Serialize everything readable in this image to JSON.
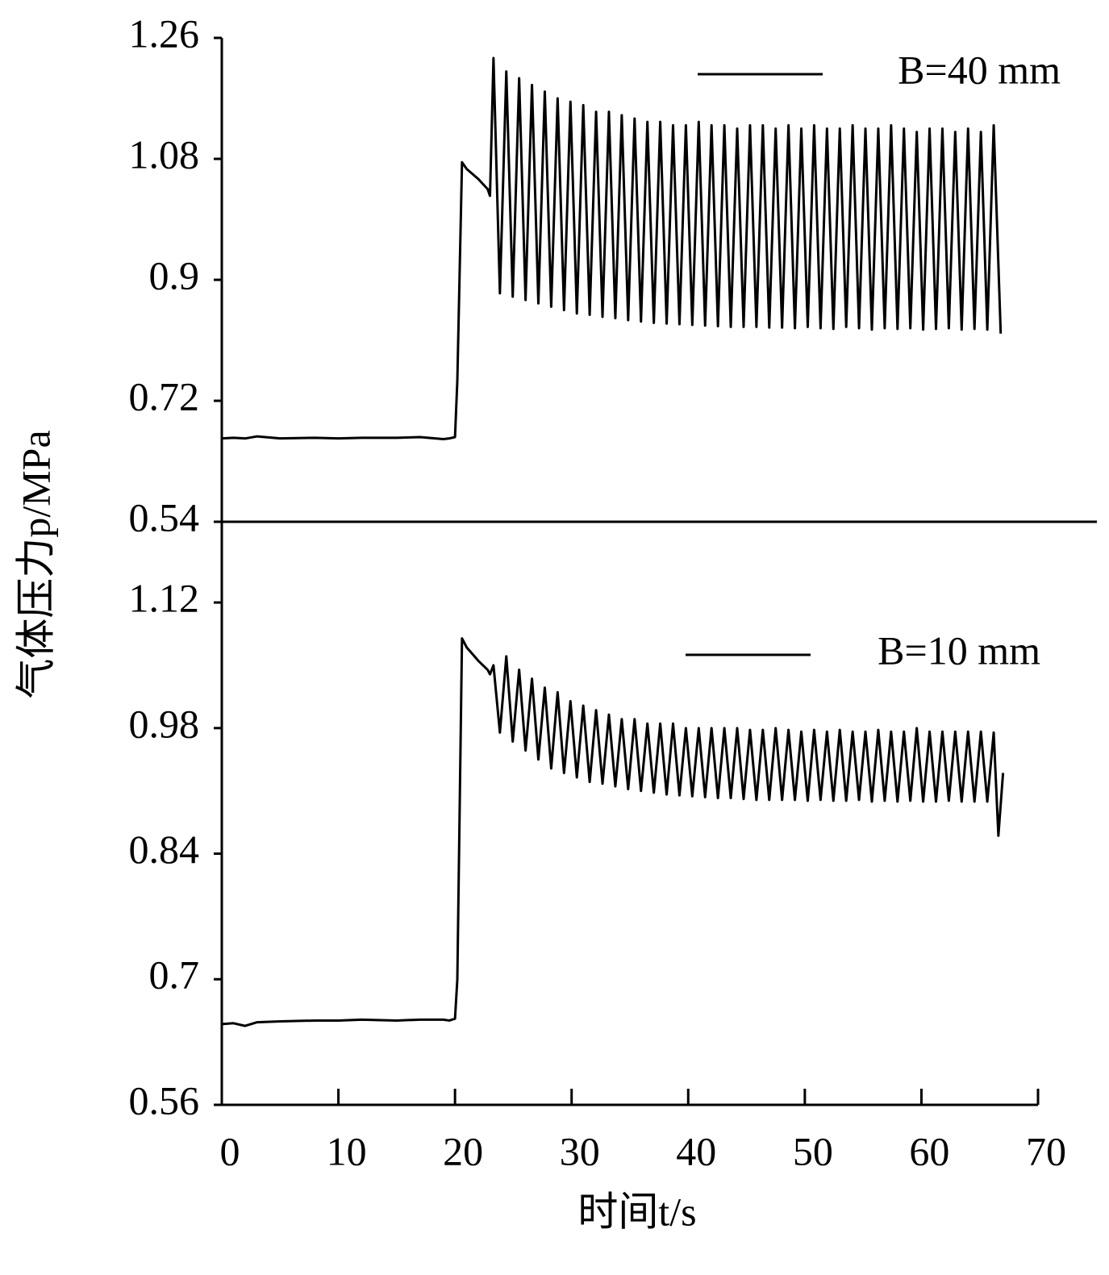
{
  "chart_data": [
    {
      "type": "line",
      "ylabel": "气体压力p/MPa",
      "xlim": [
        0,
        70
      ],
      "ylim": [
        0.54,
        1.26
      ],
      "yticks": [
        0.54,
        0.72,
        0.9,
        1.08,
        1.26
      ],
      "x": [
        0,
        1,
        2,
        3,
        5,
        8,
        10,
        12,
        15,
        17,
        19,
        19.5,
        20,
        20.2,
        20.6,
        21,
        22,
        22.8,
        23.0,
        23.3,
        23.85,
        24.4,
        24.95,
        25.5,
        26.05,
        26.6,
        27.15,
        27.7,
        28.25,
        28.8,
        29.35,
        29.9,
        30.45,
        31.0,
        31.55,
        32.1,
        32.65,
        33.2,
        33.75,
        34.3,
        34.85,
        35.4,
        35.95,
        36.5,
        37.05,
        37.6,
        38.15,
        38.7,
        39.25,
        39.8,
        40.35,
        40.9,
        41.45,
        42.0,
        42.55,
        43.1,
        43.65,
        44.2,
        44.75,
        45.3,
        45.85,
        46.4,
        46.95,
        47.5,
        48.05,
        48.6,
        49.15,
        49.7,
        50.25,
        50.8,
        51.35,
        51.9,
        52.45,
        53.0,
        53.55,
        54.1,
        54.65,
        55.2,
        55.75,
        56.3,
        56.85,
        57.4,
        57.95,
        58.5,
        59.05,
        59.6,
        60.15,
        60.7,
        61.25,
        61.8,
        62.35,
        62.9,
        63.45,
        64.0,
        64.55,
        65.1,
        65.65,
        66.2,
        66.8
      ],
      "series": [
        {
          "name": "B=40 mm",
          "color": "#000000",
          "values": [
            0.664,
            0.665,
            0.664,
            0.667,
            0.664,
            0.665,
            0.664,
            0.665,
            0.665,
            0.666,
            0.663,
            0.664,
            0.666,
            0.75,
            1.075,
            1.065,
            1.05,
            1.035,
            1.025,
            1.23,
            0.88,
            1.21,
            0.875,
            1.2,
            0.87,
            1.19,
            0.865,
            1.18,
            0.86,
            1.17,
            0.855,
            1.165,
            0.85,
            1.16,
            0.848,
            1.15,
            0.845,
            1.15,
            0.843,
            1.145,
            0.84,
            1.14,
            0.838,
            1.135,
            0.836,
            1.135,
            0.835,
            1.13,
            0.834,
            1.13,
            0.833,
            1.135,
            0.832,
            1.13,
            0.831,
            1.13,
            0.83,
            1.125,
            0.83,
            1.13,
            0.83,
            1.13,
            0.829,
            1.125,
            0.829,
            1.13,
            0.828,
            1.125,
            0.83,
            1.13,
            0.828,
            1.125,
            0.827,
            1.125,
            0.83,
            1.13,
            0.828,
            1.125,
            0.826,
            1.125,
            0.828,
            1.13,
            0.827,
            1.125,
            0.828,
            1.12,
            0.826,
            1.125,
            0.827,
            1.125,
            0.828,
            1.12,
            0.826,
            1.125,
            0.827,
            1.12,
            0.826,
            1.13,
            0.82
          ]
        }
      ]
    },
    {
      "type": "line",
      "xlabel": "时间t/s",
      "xlim": [
        0,
        70
      ],
      "xticks": [
        0,
        10,
        20,
        30,
        40,
        50,
        60,
        70
      ],
      "ylim": [
        0.56,
        1.21
      ],
      "yticks": [
        0.56,
        0.7,
        0.84,
        0.98,
        1.12
      ],
      "x": [
        0,
        1,
        2,
        3,
        5,
        8,
        10,
        12,
        15,
        17,
        19,
        19.5,
        20,
        20.2,
        20.6,
        21,
        22,
        22.8,
        23.0,
        23.3,
        23.85,
        24.4,
        24.95,
        25.5,
        26.05,
        26.6,
        27.15,
        27.7,
        28.25,
        28.8,
        29.35,
        29.9,
        30.45,
        31.0,
        31.55,
        32.1,
        32.65,
        33.2,
        33.75,
        34.3,
        34.85,
        35.4,
        35.95,
        36.5,
        37.05,
        37.6,
        38.15,
        38.7,
        39.25,
        39.8,
        40.35,
        40.9,
        41.45,
        42.0,
        42.55,
        43.1,
        43.65,
        44.2,
        44.75,
        45.3,
        45.85,
        46.4,
        46.95,
        47.5,
        48.05,
        48.6,
        49.15,
        49.7,
        50.25,
        50.8,
        51.35,
        51.9,
        52.45,
        53.0,
        53.55,
        54.1,
        54.65,
        55.2,
        55.75,
        56.3,
        56.85,
        57.4,
        57.95,
        58.5,
        59.05,
        59.6,
        60.15,
        60.7,
        61.25,
        61.8,
        62.35,
        62.9,
        63.45,
        64.0,
        64.55,
        65.1,
        65.65,
        66.2,
        66.6,
        67.0
      ],
      "series": [
        {
          "name": "B=10 mm",
          "color": "#000000",
          "values": [
            0.65,
            0.651,
            0.648,
            0.652,
            0.653,
            0.654,
            0.654,
            0.655,
            0.654,
            0.655,
            0.655,
            0.654,
            0.656,
            0.7,
            1.08,
            1.07,
            1.055,
            1.045,
            1.04,
            1.05,
            0.975,
            1.06,
            0.965,
            1.045,
            0.955,
            1.035,
            0.945,
            1.025,
            0.935,
            1.02,
            0.93,
            1.01,
            0.925,
            1.005,
            0.92,
            1.0,
            0.918,
            0.995,
            0.915,
            0.99,
            0.912,
            0.99,
            0.91,
            0.985,
            0.908,
            0.985,
            0.906,
            0.985,
            0.905,
            0.98,
            0.904,
            0.98,
            0.903,
            0.98,
            0.902,
            0.98,
            0.902,
            0.98,
            0.901,
            0.978,
            0.9,
            0.978,
            0.9,
            0.98,
            0.9,
            0.978,
            0.9,
            0.976,
            0.899,
            0.978,
            0.9,
            0.976,
            0.899,
            0.978,
            0.899,
            0.976,
            0.9,
            0.976,
            0.898,
            0.978,
            0.899,
            0.976,
            0.898,
            0.976,
            0.899,
            0.98,
            0.898,
            0.976,
            0.898,
            0.976,
            0.899,
            0.976,
            0.898,
            0.976,
            0.898,
            0.976,
            0.898,
            0.975,
            0.86,
            0.93
          ]
        }
      ]
    }
  ]
}
